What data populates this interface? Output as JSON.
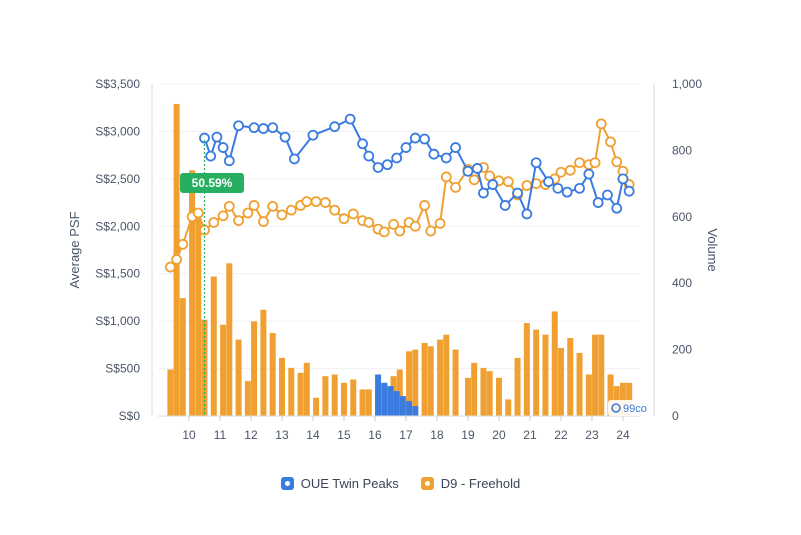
{
  "chart_data": {
    "type": "bar+line",
    "x_ticks": [
      "10",
      "11",
      "12",
      "13",
      "14",
      "15",
      "16",
      "17",
      "18",
      "19",
      "20",
      "21",
      "22",
      "23",
      "24"
    ],
    "y_left": {
      "label": "Average PSF",
      "ticks": [
        "S$0",
        "S$500",
        "S$1,000",
        "S$1,500",
        "S$2,000",
        "S$2,500",
        "S$3,000",
        "S$3,500"
      ],
      "range": [
        0,
        3500
      ]
    },
    "y_right": {
      "label": "Volume",
      "ticks": [
        "0",
        "200",
        "400",
        "600",
        "800",
        "1,000"
      ],
      "range": [
        0,
        1000
      ]
    },
    "annotation": {
      "text": "50.59%",
      "x": 10.5,
      "color": "#27ae60"
    },
    "watermark": "99co",
    "series": [
      {
        "name": "OUE Twin Peaks",
        "color": "#3a7be0",
        "x": [
          10.5,
          10.7,
          10.9,
          11.1,
          11.3,
          11.6,
          12.1,
          12.4,
          12.7,
          13.1,
          13.4,
          14.0,
          14.7,
          15.2,
          15.6,
          15.8,
          16.1,
          16.4,
          16.7,
          17.0,
          17.3,
          17.6,
          17.9,
          18.3,
          18.6,
          19.0,
          19.3,
          19.5,
          19.8,
          20.2,
          20.6,
          20.9,
          21.2,
          21.6,
          21.9,
          22.2,
          22.6,
          22.9,
          23.2,
          23.5,
          23.8,
          24.0,
          24.2
        ],
        "y": [
          2930,
          2740,
          2940,
          2830,
          2690,
          3060,
          3040,
          3030,
          3040,
          2940,
          2710,
          2960,
          3050,
          3130,
          2870,
          2740,
          2620,
          2650,
          2720,
          2830,
          2930,
          2920,
          2760,
          2720,
          2830,
          2580,
          2610,
          2350,
          2440,
          2220,
          2350,
          2130,
          2670,
          2470,
          2400,
          2360,
          2400,
          2550,
          2250,
          2330,
          2190,
          2500,
          2370
        ]
      },
      {
        "name": "D9 - Freehold",
        "color": "#f0a030",
        "x": [
          9.4,
          9.6,
          9.8,
          10.1,
          10.3,
          10.5,
          10.8,
          11.1,
          11.3,
          11.6,
          11.9,
          12.1,
          12.4,
          12.7,
          13.0,
          13.3,
          13.6,
          13.8,
          14.1,
          14.4,
          14.7,
          15.0,
          15.3,
          15.6,
          15.8,
          16.1,
          16.3,
          16.6,
          16.8,
          17.1,
          17.3,
          17.6,
          17.8,
          18.1,
          18.3,
          18.6,
          19.0,
          19.2,
          19.5,
          19.7,
          20.0,
          20.3,
          20.6,
          20.9,
          21.2,
          21.5,
          21.8,
          22.0,
          22.3,
          22.6,
          22.9,
          23.1,
          23.3,
          23.6,
          23.8,
          24.0,
          24.2
        ],
        "y": [
          1570,
          1650,
          1810,
          2100,
          2140,
          1960,
          2040,
          2110,
          2210,
          2060,
          2140,
          2220,
          2050,
          2210,
          2120,
          2170,
          2220,
          2260,
          2260,
          2250,
          2170,
          2080,
          2130,
          2060,
          2040,
          1970,
          1940,
          2020,
          1950,
          2040,
          2000,
          2220,
          1950,
          2030,
          2520,
          2410,
          2600,
          2490,
          2620,
          2530,
          2480,
          2470,
          2330,
          2430,
          2450,
          2440,
          2500,
          2570,
          2590,
          2670,
          2650,
          2670,
          3080,
          2890,
          2680,
          2580,
          2440
        ]
      },
      {
        "name": "OUE Twin Peaks volume",
        "color": "#3a7be0",
        "x": [
          16.1,
          16.3,
          16.5,
          16.7,
          16.9,
          17.1,
          17.3
        ],
        "values": [
          125,
          100,
          90,
          75,
          60,
          45,
          30
        ]
      },
      {
        "name": "D9 - Freehold volume",
        "color": "#f0a030",
        "x": [
          9.4,
          9.6,
          9.8,
          10.1,
          10.3,
          10.5,
          10.8,
          11.1,
          11.3,
          11.6,
          11.9,
          12.1,
          12.4,
          12.7,
          13.0,
          13.3,
          13.6,
          13.8,
          14.1,
          14.4,
          14.7,
          15.0,
          15.3,
          15.6,
          15.8,
          16.1,
          16.3,
          16.6,
          16.8,
          17.1,
          17.3,
          17.6,
          17.8,
          18.1,
          18.3,
          18.6,
          19.0,
          19.2,
          19.5,
          19.7,
          20.0,
          20.3,
          20.6,
          20.9,
          21.2,
          21.5,
          21.8,
          22.0,
          22.3,
          22.6,
          22.9,
          23.1,
          23.3,
          23.6,
          23.8,
          24.0,
          24.2
        ],
        "values": [
          140,
          940,
          355,
          740,
          595,
          290,
          420,
          275,
          460,
          230,
          105,
          285,
          320,
          250,
          175,
          145,
          130,
          160,
          55,
          120,
          125,
          100,
          110,
          80,
          80,
          82,
          95,
          120,
          140,
          195,
          200,
          220,
          210,
          230,
          245,
          200,
          115,
          160,
          145,
          135,
          115,
          50,
          175,
          280,
          260,
          245,
          315,
          205,
          235,
          190,
          125,
          245,
          245,
          125,
          90,
          100,
          100
        ]
      }
    ],
    "legend": {
      "position": "bottom-center",
      "entries": [
        "OUE Twin Peaks",
        "D9 - Freehold"
      ]
    }
  }
}
